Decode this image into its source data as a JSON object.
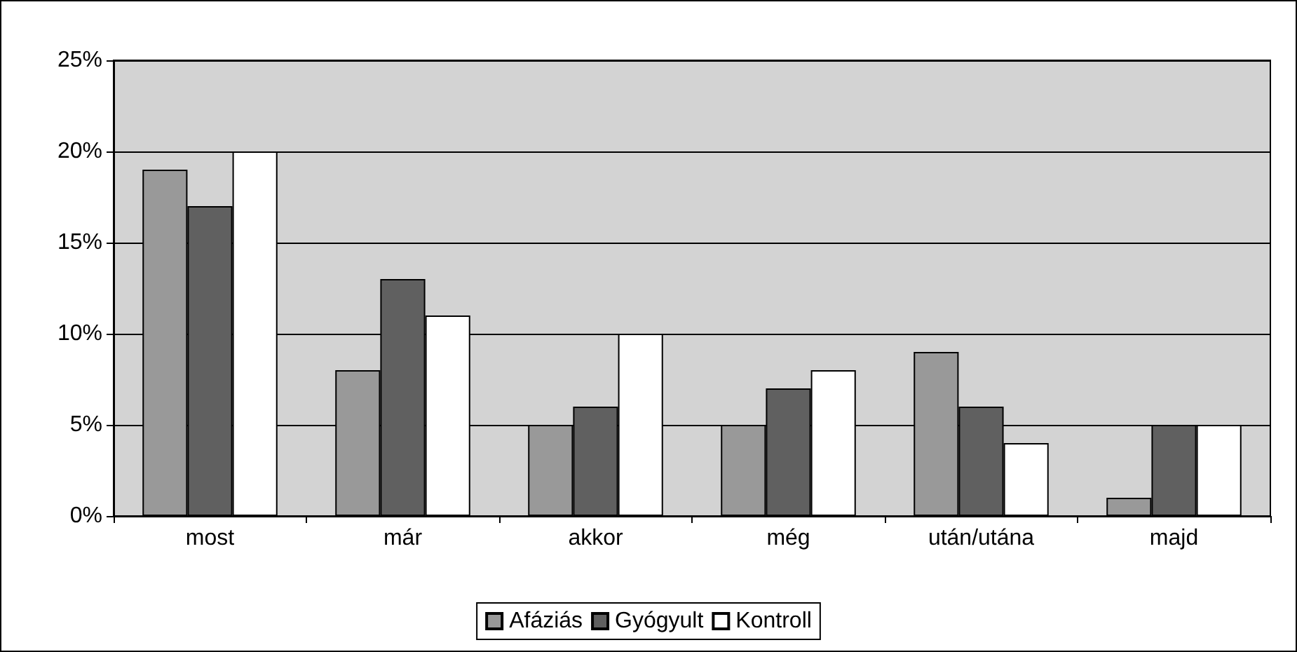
{
  "chart_data": {
    "type": "bar",
    "categories": [
      "most",
      "már",
      "akkor",
      "még",
      "után/utána",
      "majd"
    ],
    "series": [
      {
        "name": "Afáziás",
        "color": "#999999",
        "values": [
          19,
          8,
          5,
          5,
          9,
          1
        ]
      },
      {
        "name": "Gyógyult",
        "color": "#606060",
        "values": [
          17,
          13,
          6,
          7,
          6,
          5
        ]
      },
      {
        "name": "Kontroll",
        "color": "#ffffff",
        "values": [
          20,
          11,
          10,
          8,
          4,
          5
        ]
      }
    ],
    "ylim": [
      0,
      25
    ],
    "yticks": [
      {
        "value": 0,
        "label": "0%"
      },
      {
        "value": 5,
        "label": "5%"
      },
      {
        "value": 10,
        "label": "10%"
      },
      {
        "value": 15,
        "label": "15%"
      },
      {
        "value": 20,
        "label": "20%"
      },
      {
        "value": 25,
        "label": "25%"
      }
    ],
    "grid": "y",
    "legend": "bottom"
  }
}
